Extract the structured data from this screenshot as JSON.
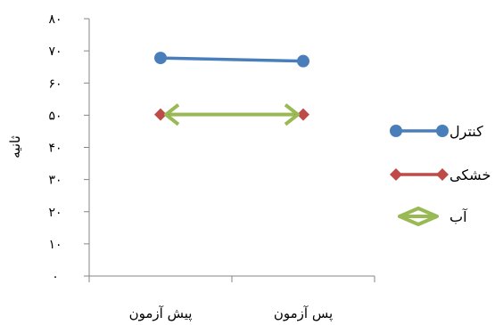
{
  "chart_data": {
    "type": "line",
    "title": "",
    "xlabel": "",
    "ylabel": "ثانیه",
    "ylim": [
      0,
      80
    ],
    "yticks": [
      0,
      10,
      20,
      30,
      40,
      50,
      60,
      70,
      80
    ],
    "ytick_labels": [
      "۰",
      "۱۰",
      "۲۰",
      "۳۰",
      "۴۰",
      "۵۰",
      "۶۰",
      "۷۰",
      "۸۰"
    ],
    "categories": [
      "پیش آزمون",
      "پس آزمون"
    ],
    "grid": false,
    "legend_position": "right",
    "series": [
      {
        "name": "کنترل",
        "values": [
          67.8,
          66.8
        ],
        "color": "#4a7ebb",
        "marker": "circle"
      },
      {
        "name": "خشکی",
        "values": [
          50.2,
          50.2
        ],
        "color": "#be4b48",
        "marker": "diamond"
      },
      {
        "name": "آب",
        "values": [
          50.2,
          50.2
        ],
        "color": "#98b954",
        "marker": "double-arrow"
      }
    ]
  }
}
